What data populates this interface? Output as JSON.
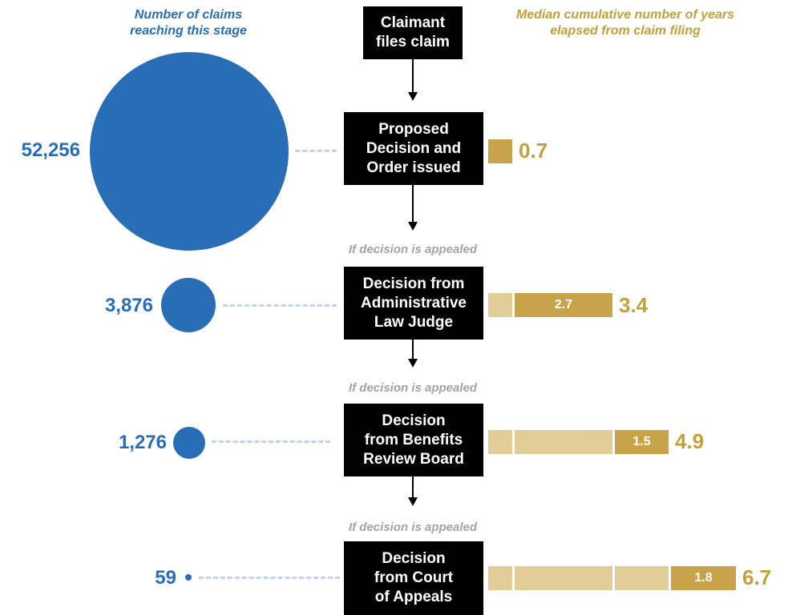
{
  "headers": {
    "left": "Number of claims\nreaching this stage",
    "right": "Median cumulative number of years\nelapsed from claim filing"
  },
  "appeal_note": "If decision is appealed",
  "stages": [
    {
      "label": "Claimant\nfiles claim"
    },
    {
      "label": "Proposed\nDecision and\nOrder issued",
      "claims": "52,256",
      "total_years": "0.7",
      "segment_years": ""
    },
    {
      "label": "Decision from\nAdministrative\nLaw Judge",
      "claims": "3,876",
      "total_years": "3.4",
      "segment_years": "2.7"
    },
    {
      "label": "Decision\nfrom Benefits\nReview Board",
      "claims": "1,276",
      "total_years": "4.9",
      "segment_years": "1.5"
    },
    {
      "label": "Decision\nfrom Court\nof Appeals",
      "claims": "59",
      "total_years": "6.7",
      "segment_years": "1.8"
    }
  ],
  "colors": {
    "circle": "#2a6db7",
    "bar_current": "#c9a34a",
    "bar_previous": "#e2cc98",
    "box": "#000000"
  }
}
